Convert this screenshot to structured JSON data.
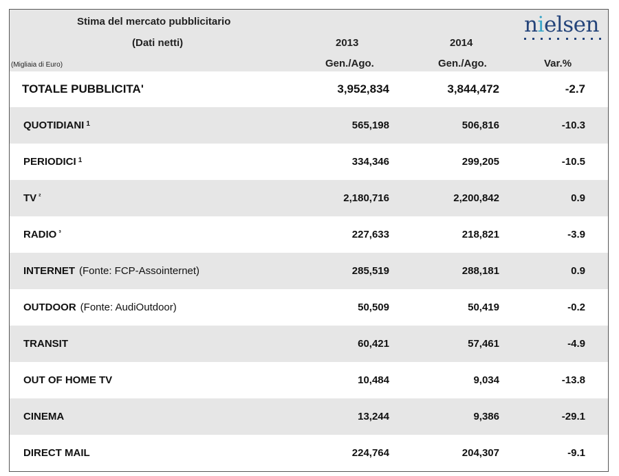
{
  "header": {
    "title": "Stima del mercato pubblicitario",
    "subtitle": "(Dati netti)",
    "unit_note": "(Migliaia di Euro)",
    "col_2013_year": "2013",
    "col_2014_year": "2014",
    "col_2013_period": "Gen./Ago.",
    "col_2014_period": "Gen./Ago.",
    "col_var": "Var.%",
    "logo": "nielsen"
  },
  "total": {
    "label": "TOTALE PUBBLICITA'",
    "v2013": "3,952,834",
    "v2014": "3,844,472",
    "var": "-2.7"
  },
  "rows": [
    {
      "label": "QUOTIDIANI",
      "note": "1",
      "source": "",
      "v2013": "565,198",
      "v2014": "506,816",
      "var": "-10.3"
    },
    {
      "label": "PERIODICI",
      "note": "1",
      "source": "",
      "v2013": "334,346",
      "v2014": "299,205",
      "var": "-10.5"
    },
    {
      "label": "TV",
      "note": "²",
      "source": "",
      "v2013": "2,180,716",
      "v2014": "2,200,842",
      "var": "0.9"
    },
    {
      "label": "RADIO",
      "note": "³",
      "source": "",
      "v2013": "227,633",
      "v2014": "218,821",
      "var": "-3.9"
    },
    {
      "label": "INTERNET",
      "note": "",
      "source": " (Fonte: FCP-Assointernet)",
      "v2013": "285,519",
      "v2014": "288,181",
      "var": "0.9"
    },
    {
      "label": "OUTDOOR",
      "note": "",
      "source": "(Fonte: AudiOutdoor)",
      "v2013": "50,509",
      "v2014": "50,419",
      "var": "-0.2"
    },
    {
      "label": "TRANSIT",
      "note": "",
      "source": "",
      "v2013": "60,421",
      "v2014": "57,461",
      "var": "-4.9"
    },
    {
      "label": "OUT OF HOME TV",
      "note": "",
      "source": "",
      "v2013": "10,484",
      "v2014": "9,034",
      "var": "-13.8"
    },
    {
      "label": "CINEMA",
      "note": "",
      "source": "",
      "v2013": "13,244",
      "v2014": "9,386",
      "var": "-29.1"
    },
    {
      "label": "DIRECT MAIL",
      "note": "",
      "source": "",
      "v2013": "224,764",
      "v2014": "204,307",
      "var": "-9.1"
    }
  ]
}
